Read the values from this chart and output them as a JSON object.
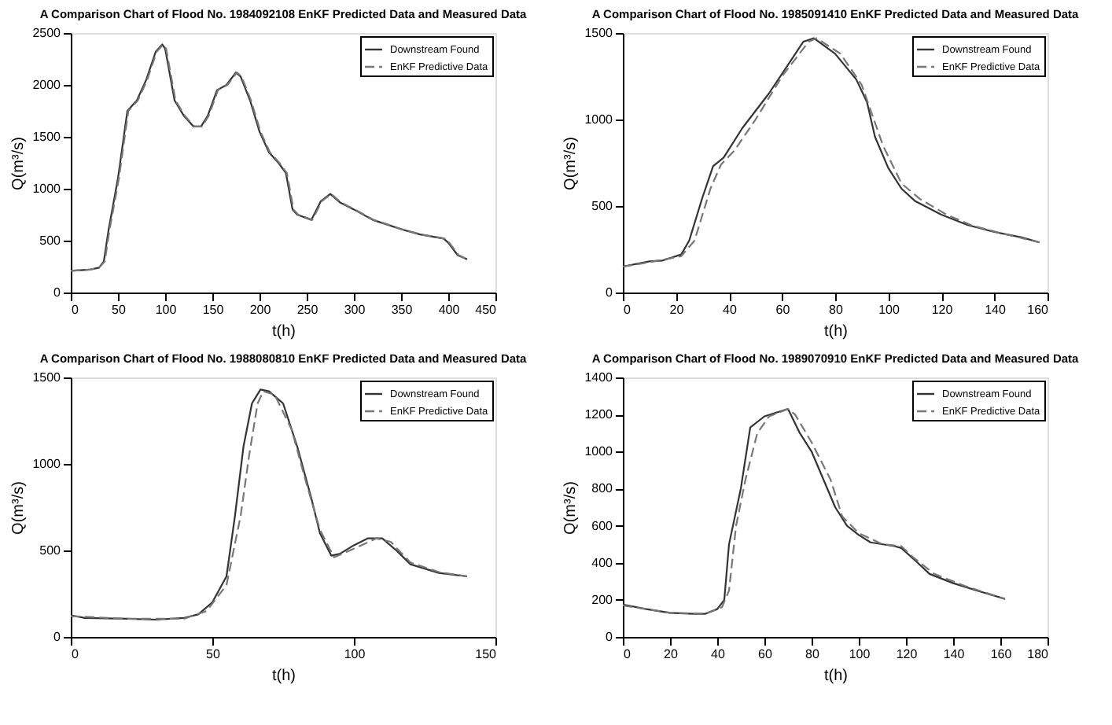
{
  "chart_data": [
    {
      "type": "line",
      "title": "A Comparison Chart of Flood No. 1984092108 EnKF Predicted Data and Measured Data",
      "xlabel": "t(h)",
      "ylabel": "Q(m³/s)",
      "xlim": [
        0,
        450
      ],
      "xticks": [
        0,
        50,
        100,
        150,
        200,
        250,
        300,
        350,
        400,
        450
      ],
      "ylim": [
        0,
        2500
      ],
      "yticks": [
        0,
        500,
        1000,
        1500,
        2000,
        2500
      ],
      "legend": "top right",
      "grid": false,
      "series": [
        {
          "name": "Downstream Found",
          "color": "#333333",
          "line_style": "solid",
          "x": [
            0,
            20,
            30,
            35,
            40,
            50,
            60,
            70,
            80,
            90,
            97,
            100,
            110,
            120,
            130,
            138,
            145,
            155,
            165,
            175,
            180,
            190,
            200,
            210,
            220,
            228,
            235,
            240,
            255,
            265,
            275,
            285,
            300,
            320,
            350,
            370,
            395,
            400,
            410,
            420
          ],
          "values": [
            210,
            220,
            240,
            300,
            600,
            1100,
            1750,
            1850,
            2050,
            2320,
            2390,
            2350,
            1850,
            1700,
            1600,
            1600,
            1700,
            1950,
            2000,
            2120,
            2080,
            1850,
            1550,
            1350,
            1250,
            1150,
            800,
            750,
            700,
            880,
            950,
            870,
            800,
            700,
            610,
            560,
            520,
            480,
            360,
            320
          ]
        },
        {
          "name": "EnKF Predictive Data",
          "color": "#777777",
          "line_style": "dashed",
          "x": [
            0,
            20,
            30,
            36,
            41,
            51,
            61,
            71,
            81,
            91,
            98,
            101,
            111,
            121,
            131,
            139,
            146,
            156,
            166,
            176,
            181,
            191,
            201,
            211,
            221,
            229,
            236,
            241,
            256,
            266,
            276,
            286,
            301,
            321,
            351,
            371,
            396,
            401,
            411,
            420
          ],
          "values": [
            210,
            220,
            240,
            300,
            600,
            1100,
            1750,
            1850,
            2050,
            2320,
            2390,
            2350,
            1850,
            1700,
            1600,
            1600,
            1700,
            1950,
            2000,
            2120,
            2080,
            1850,
            1550,
            1350,
            1250,
            1150,
            800,
            750,
            700,
            880,
            950,
            870,
            800,
            700,
            610,
            560,
            520,
            480,
            360,
            320
          ]
        }
      ]
    },
    {
      "type": "line",
      "title": "A Comparison Chart of Flood No. 1985091410 EnKF Predicted Data and Measured Data",
      "xlabel": "t(h)",
      "ylabel": "Q(m³/s)",
      "xlim": [
        0,
        160
      ],
      "xticks": [
        0,
        20,
        40,
        60,
        80,
        100,
        120,
        140,
        160
      ],
      "ylim": [
        0,
        1500
      ],
      "yticks": [
        0,
        500,
        1000,
        1500
      ],
      "legend": "top right",
      "grid": false,
      "series": [
        {
          "name": "Downstream Found",
          "color": "#333333",
          "line_style": "solid",
          "x": [
            0,
            10,
            15,
            22,
            25,
            30,
            34,
            38,
            45,
            55,
            65,
            68,
            72,
            80,
            88,
            92,
            95,
            100,
            105,
            110,
            120,
            130,
            140,
            150,
            157
          ],
          "values": [
            150,
            180,
            185,
            220,
            300,
            550,
            730,
            780,
            950,
            1150,
            1380,
            1450,
            1470,
            1380,
            1230,
            1100,
            900,
            720,
            600,
            530,
            450,
            390,
            350,
            320,
            290
          ]
        },
        {
          "name": "EnKF Predictive Data",
          "color": "#777777",
          "line_style": "dashed",
          "x": [
            0,
            10,
            22,
            27,
            33,
            37,
            42,
            50,
            60,
            70,
            73,
            82,
            90,
            98,
            105,
            112,
            122,
            132,
            142,
            157
          ],
          "values": [
            150,
            175,
            210,
            300,
            600,
            740,
            820,
            1000,
            1250,
            1450,
            1470,
            1380,
            1200,
            850,
            630,
            540,
            450,
            385,
            345,
            290
          ]
        }
      ]
    },
    {
      "type": "line",
      "title": "A Comparison Chart of Flood No. 1988080810 EnKF Predicted Data and Measured Data",
      "xlabel": "t(h)",
      "ylabel": "Q(m³/s)",
      "xlim": [
        0,
        150
      ],
      "xticks": [
        0,
        50,
        100,
        150
      ],
      "ylim": [
        0,
        1500
      ],
      "yticks": [
        0,
        500,
        1000,
        1500
      ],
      "legend": "top right",
      "grid": false,
      "series": [
        {
          "name": "Downstream Found",
          "color": "#333333",
          "line_style": "solid",
          "x": [
            0,
            5,
            20,
            30,
            40,
            45,
            50,
            55,
            58,
            61,
            64,
            67,
            70,
            75,
            80,
            85,
            88,
            92,
            95,
            100,
            105,
            110,
            115,
            120,
            130,
            140
          ],
          "values": [
            125,
            110,
            105,
            100,
            110,
            130,
            200,
            350,
            700,
            1100,
            1350,
            1430,
            1420,
            1350,
            1100,
            800,
            600,
            470,
            480,
            530,
            570,
            570,
            500,
            420,
            370,
            350
          ]
        },
        {
          "name": "EnKF Predictive Data",
          "color": "#777777",
          "line_style": "dashed",
          "x": [
            0,
            20,
            40,
            48,
            55,
            60,
            63,
            66,
            68,
            72,
            78,
            83,
            88,
            93,
            100,
            108,
            113,
            120,
            130,
            140
          ],
          "values": [
            120,
            105,
            105,
            150,
            300,
            700,
            1050,
            1350,
            1420,
            1400,
            1200,
            900,
            620,
            460,
            510,
            570,
            550,
            430,
            375,
            350
          ]
        }
      ]
    },
    {
      "type": "line",
      "title": "A Comparison Chart of Flood No. 1989070910 EnKF Predicted Data and Measured Data",
      "xlabel": "t(h)",
      "ylabel": "Q(m³/s)",
      "xlim": [
        0,
        180
      ],
      "xticks": [
        0,
        20,
        40,
        60,
        80,
        100,
        120,
        140,
        160,
        180
      ],
      "ylim": [
        0,
        1400
      ],
      "yticks": [
        0,
        200,
        400,
        600,
        800,
        1000,
        1200,
        1400
      ],
      "legend": "top right",
      "grid": false,
      "series": [
        {
          "name": "Downstream Found",
          "color": "#333333",
          "line_style": "solid",
          "x": [
            0,
            10,
            20,
            30,
            35,
            40,
            43,
            45,
            50,
            54,
            60,
            70,
            75,
            80,
            90,
            95,
            100,
            105,
            115,
            118,
            125,
            130,
            140,
            150,
            162
          ],
          "values": [
            175,
            150,
            130,
            125,
            125,
            150,
            200,
            500,
            800,
            1130,
            1190,
            1230,
            1100,
            1000,
            700,
            600,
            550,
            510,
            490,
            480,
            400,
            340,
            290,
            250,
            205
          ]
        },
        {
          "name": "EnKF Predictive Data",
          "color": "#777777",
          "line_style": "dashed",
          "x": [
            0,
            20,
            35,
            42,
            45,
            48,
            52,
            57,
            62,
            70,
            73,
            80,
            88,
            93,
            100,
            110,
            118,
            123,
            132,
            145,
            162
          ],
          "values": [
            170,
            130,
            125,
            160,
            250,
            600,
            850,
            1100,
            1190,
            1230,
            1200,
            1050,
            850,
            650,
            560,
            500,
            490,
            430,
            340,
            275,
            205
          ]
        }
      ]
    }
  ]
}
